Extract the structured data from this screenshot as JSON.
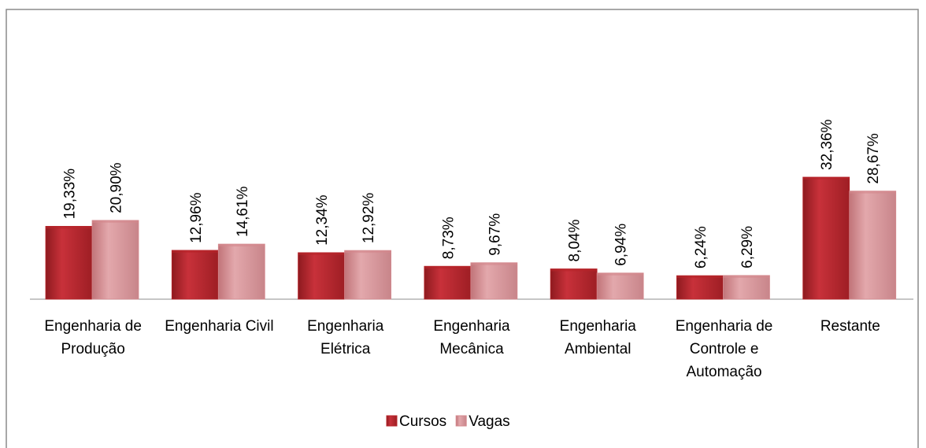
{
  "chart_data": {
    "type": "bar",
    "categories": [
      "Engenharia de Produção",
      "Engenharia Civil",
      "Engenharia Elétrica",
      "Engenharia Mecânica",
      "Engenharia Ambiental",
      "Engenharia de Controle e Automação",
      "Restante"
    ],
    "series": [
      {
        "name": "Cursos",
        "color": "#b8242a",
        "values": [
          19.33,
          12.96,
          12.34,
          8.73,
          8.04,
          6.24,
          32.36
        ],
        "value_labels": [
          "19,33%",
          "12,96%",
          "12,34%",
          "8,73%",
          "8,04%",
          "6,24%",
          "32,36%"
        ]
      },
      {
        "name": "Vagas",
        "color": "#d4898e",
        "values": [
          20.9,
          14.61,
          12.92,
          9.67,
          6.94,
          6.29,
          28.67
        ],
        "value_labels": [
          "20,90%",
          "14,61%",
          "12,92%",
          "9,67%",
          "6,94%",
          "6,29%",
          "28,67%"
        ]
      }
    ],
    "legend": "bottom"
  }
}
